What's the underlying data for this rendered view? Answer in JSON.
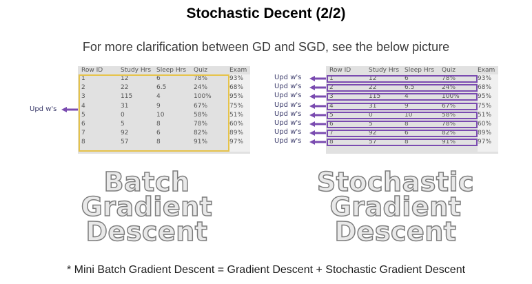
{
  "title": "Stochastic Decent (2/2)",
  "subtitle": "For more clarification between GD and SGD, see the below picture",
  "table": {
    "headers": [
      "Row ID",
      "Study Hrs",
      "Sleep Hrs",
      "Quiz",
      "Exam"
    ],
    "rows": [
      [
        "1",
        "12",
        "6",
        "78%",
        "93%"
      ],
      [
        "2",
        "22",
        "6.5",
        "24%",
        "68%"
      ],
      [
        "3",
        "115",
        "4",
        "100%",
        "95%"
      ],
      [
        "4",
        "31",
        "9",
        "67%",
        "75%"
      ],
      [
        "5",
        "0",
        "10",
        "58%",
        "51%"
      ],
      [
        "6",
        "5",
        "8",
        "78%",
        "60%"
      ],
      [
        "7",
        "92",
        "6",
        "82%",
        "89%"
      ],
      [
        "8",
        "57",
        "8",
        "91%",
        "97%"
      ]
    ]
  },
  "left_panel": {
    "update_label": "Upd w's",
    "caption": [
      "Batch",
      "Gradient",
      "Descent"
    ]
  },
  "right_panel": {
    "update_label": "Upd w's",
    "caption": [
      "Stochastic",
      "Gradient",
      "Descent"
    ]
  },
  "colors": {
    "batch_highlight": "#e6c34a",
    "row_highlight": "#7a4bb0",
    "arrow": "#7a4bb0"
  },
  "footer": "* Mini Batch Gradient Descent = Gradient Descent + Stochastic Gradient Descent"
}
